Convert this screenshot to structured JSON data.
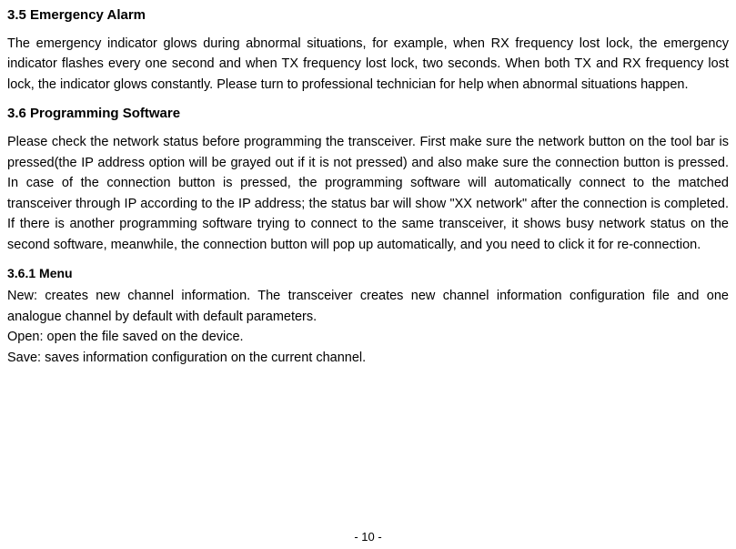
{
  "sections": {
    "s35": {
      "heading": "3.5  Emergency Alarm",
      "body": "The emergency indicator glows during abnormal situations, for example, when RX frequency lost lock, the emergency indicator flashes every one second and when TX frequency lost lock, two seconds. When both TX and RX frequency lost lock, the indicator glows constantly. Please turn to professional technician for help when abnormal situations happen."
    },
    "s36": {
      "heading": "3.6  Programming Software",
      "body": "Please check the network status before programming the transceiver. First make sure the network button on the tool bar is pressed(the IP address option will be grayed out if it is not pressed) and also make sure the connection button is pressed. In case of the connection button is pressed, the programming software will automatically connect to the matched transceiver through IP according to the IP address; the status bar will show \"XX network\" after the connection is completed. If there is another programming software trying to connect to the same transceiver, it shows busy network status on the second software, meanwhile, the connection button will pop up automatically, and you need to click it for re-connection."
    },
    "s361": {
      "heading": "3.6.1 Menu",
      "line1": "New: creates new channel information. The transceiver creates new channel information configuration file and one analogue channel by default with default parameters.",
      "line2": "Open: open the file saved on the device.",
      "line3": "Save: saves information configuration on the current channel."
    }
  },
  "page_number": "-  10  -"
}
